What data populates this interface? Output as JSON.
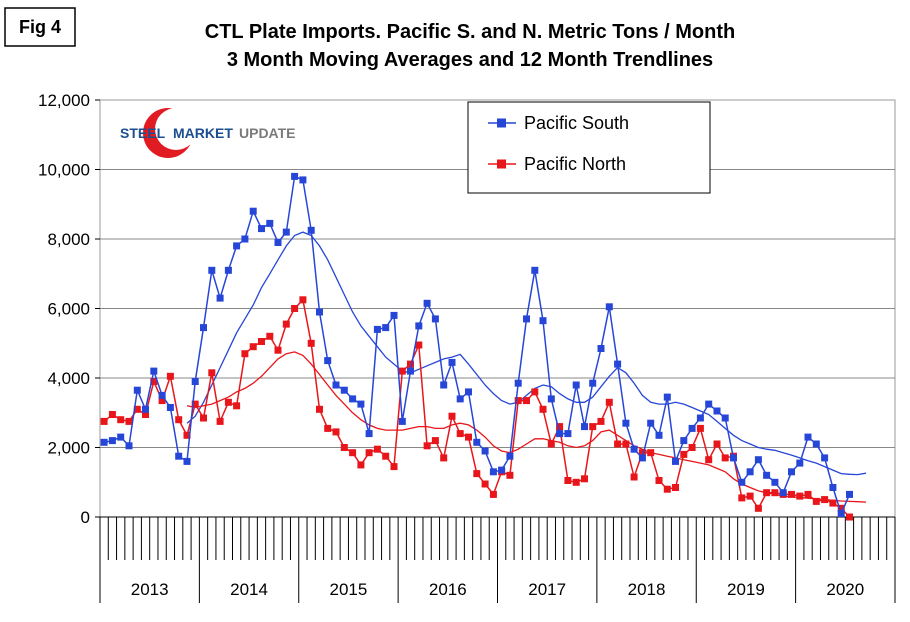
{
  "figure_label": "Fig 4",
  "logo": {
    "word1": "STEEL",
    "word2": "MARKET",
    "word3": "UPDATE"
  },
  "chart_data": {
    "type": "line",
    "title": "CTL Plate Imports. Pacific S. and N. Metric Tons / Month",
    "subtitle": "3 Month Moving Averages and 12 Month Trendlines",
    "ylim": [
      0,
      12000
    ],
    "y_ticks": [
      0,
      2000,
      4000,
      6000,
      8000,
      10000,
      12000
    ],
    "y_tick_labels": [
      "0",
      "2,000",
      "4,000",
      "6,000",
      "8,000",
      "10,000",
      "12,000"
    ],
    "x_year_labels": [
      "2013",
      "2014",
      "2015",
      "2016",
      "2017",
      "2018",
      "2019",
      "2020"
    ],
    "months_total": 96,
    "legend": [
      {
        "name": "Pacific South",
        "color": "#2646d8"
      },
      {
        "name": "Pacific North",
        "color": "#e8161a"
      }
    ],
    "series": [
      {
        "name": "Pacific South",
        "color": "#2646d8",
        "values": [
          2150,
          2200,
          2300,
          2050,
          3650,
          3100,
          4200,
          3500,
          3150,
          1750,
          1600,
          3900,
          5450,
          7100,
          6300,
          7100,
          7800,
          8000,
          8800,
          8300,
          8450,
          7900,
          8200,
          9800,
          9700,
          8250,
          5900,
          4500,
          3800,
          3650,
          3400,
          3250,
          2400,
          5400,
          5450,
          5800,
          2750,
          4200,
          5500,
          6150,
          5700,
          3800,
          4450,
          3400,
          3600,
          2150,
          1900,
          1300,
          1350,
          1750,
          3850,
          5700,
          7100,
          5650,
          3400,
          2400,
          2400,
          3800,
          2600,
          3850,
          4850,
          6050,
          4400,
          2700,
          1950,
          1700,
          2700,
          2350,
          3450,
          1600,
          2200,
          2550,
          2850,
          3250,
          3050,
          2850,
          1700,
          1000,
          1300,
          1650,
          1200,
          1000,
          700,
          1300,
          1550,
          2300,
          2100,
          1700,
          850,
          100,
          650
        ]
      },
      {
        "name": "Pacific North",
        "color": "#e8161a",
        "values": [
          2750,
          2950,
          2800,
          2750,
          3100,
          2950,
          3900,
          3350,
          4050,
          2800,
          2350,
          3250,
          2850,
          4150,
          2750,
          3300,
          3200,
          4700,
          4900,
          5050,
          5200,
          4800,
          5550,
          6000,
          6250,
          5000,
          3100,
          2550,
          2450,
          2000,
          1850,
          1500,
          1850,
          1950,
          1750,
          1450,
          4200,
          4400,
          4950,
          2050,
          2200,
          1700,
          2900,
          2400,
          2300,
          1250,
          950,
          650,
          1300,
          1200,
          3350,
          3350,
          3600,
          3100,
          2100,
          2600,
          1050,
          1000,
          1100,
          2600,
          2750,
          3300,
          2100,
          2100,
          1150,
          1850,
          1850,
          1050,
          800,
          850,
          1800,
          2000,
          2550,
          1650,
          2100,
          1700,
          1750,
          550,
          600,
          250,
          700,
          700,
          650,
          650,
          600,
          650,
          450,
          500,
          400,
          250,
          0
        ]
      },
      {
        "name": "Pacific South 12 Month Trendline",
        "color": "#2646d8",
        "values": [
          null,
          null,
          null,
          null,
          null,
          null,
          null,
          null,
          null,
          null,
          2700,
          2900,
          3300,
          3800,
          4300,
          4800,
          5300,
          5700,
          6100,
          6600,
          7000,
          7400,
          7800,
          8100,
          8200,
          8100,
          7800,
          7400,
          6900,
          6400,
          5900,
          5500,
          5200,
          4900,
          4600,
          4400,
          4200,
          4150,
          4250,
          4350,
          4450,
          4550,
          4600,
          4680,
          4400,
          4100,
          3800,
          3550,
          3350,
          3250,
          3300,
          3500,
          3700,
          3800,
          3750,
          3550,
          3400,
          3300,
          3300,
          3450,
          3750,
          4050,
          4300,
          4150,
          3850,
          3500,
          3300,
          3250,
          3250,
          3300,
          3250,
          3150,
          3050,
          2950,
          2750,
          2550,
          2350,
          2200,
          2100,
          2000,
          1950,
          1920,
          1850,
          1780,
          1700,
          1620,
          1550,
          1450,
          1350,
          1250,
          1230,
          1220,
          1260
        ]
      },
      {
        "name": "Pacific North 12 Month Trendline",
        "color": "#e8161a",
        "values": [
          null,
          null,
          null,
          null,
          null,
          null,
          null,
          null,
          null,
          null,
          3200,
          3150,
          3200,
          3250,
          3350,
          3450,
          3600,
          3700,
          3850,
          4050,
          4300,
          4550,
          4700,
          4750,
          4650,
          4400,
          4100,
          3800,
          3500,
          3250,
          3000,
          2800,
          2650,
          2550,
          2500,
          2500,
          2500,
          2550,
          2600,
          2600,
          2550,
          2550,
          2650,
          2700,
          2650,
          2500,
          2300,
          2050,
          1900,
          1850,
          1950,
          2100,
          2250,
          2250,
          2200,
          2150,
          2050,
          2000,
          2050,
          2200,
          2450,
          2500,
          2350,
          2200,
          2050,
          1950,
          1850,
          1800,
          1750,
          1700,
          1650,
          1600,
          1550,
          1500,
          1400,
          1300,
          1100,
          950,
          850,
          750,
          700,
          650,
          600,
          580,
          560,
          540,
          520,
          500,
          480,
          460,
          450,
          440,
          430
        ]
      }
    ]
  }
}
